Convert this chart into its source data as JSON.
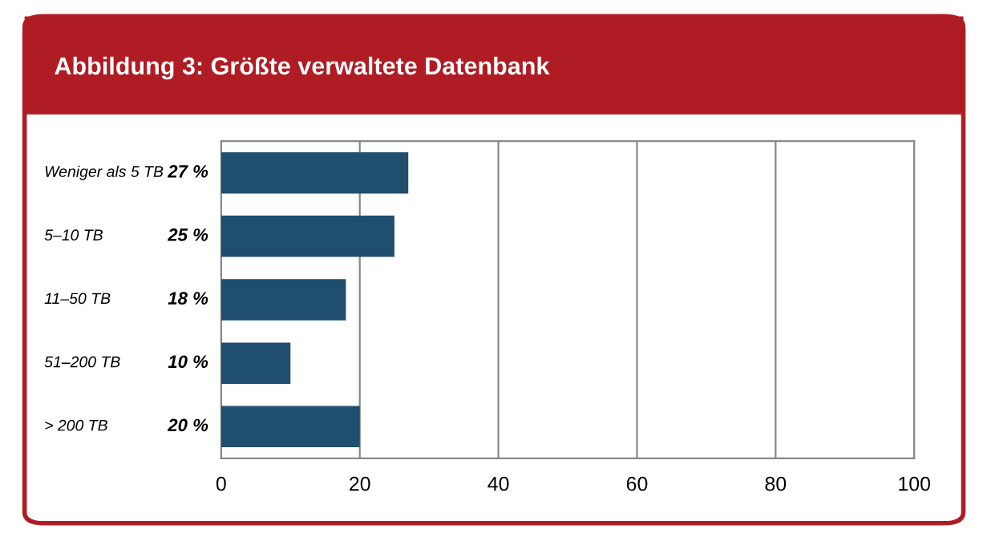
{
  "chart_data": {
    "type": "bar",
    "orientation": "horizontal",
    "title": "Abbildung 3: Größte verwaltete Datenbank",
    "categories": [
      "Weniger als 5 TB",
      "5–10 TB",
      "11–50 TB",
      "51–200 TB",
      "> 200 TB"
    ],
    "values": [
      27,
      25,
      18,
      10,
      20
    ],
    "value_labels": [
      "27 %",
      "25 %",
      "18 %",
      "10 %",
      "20 %"
    ],
    "color": "#1f4e6e",
    "xlim": [
      0,
      100
    ],
    "xticks": [
      0,
      20,
      40,
      60,
      80,
      100
    ],
    "grid": "x"
  }
}
